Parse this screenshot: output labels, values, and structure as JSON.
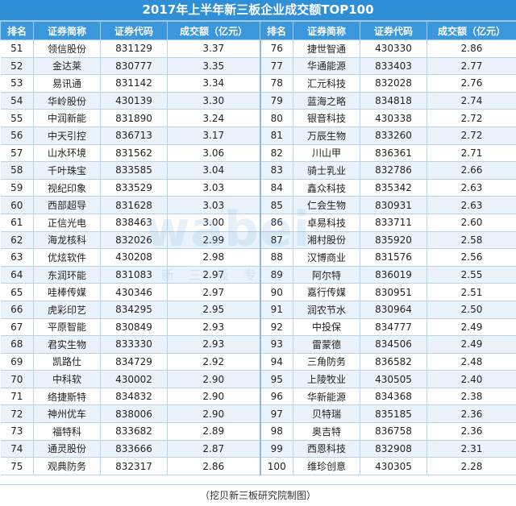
{
  "title": "2017年上半年新三板企业成交额TOP100",
  "headers": [
    "排名",
    "证券简称",
    "证券代码",
    "成交额（亿元）",
    "排名",
    "证券简称",
    "证券代码",
    "成交额（亿元）"
  ],
  "rows": [
    [
      "51",
      "领信股份",
      "831129",
      "3.37",
      "76",
      "捷世智通",
      "430330",
      "2.86"
    ],
    [
      "52",
      "金达莱",
      "830777",
      "3.35",
      "77",
      "华通能源",
      "833403",
      "2.77"
    ],
    [
      "53",
      "易讯通",
      "831142",
      "3.34",
      "78",
      "汇元科技",
      "832028",
      "2.76"
    ],
    [
      "54",
      "华岭股份",
      "430139",
      "3.30",
      "79",
      "蓝海之略",
      "834818",
      "2.74"
    ],
    [
      "55",
      "中润新能",
      "831890",
      "3.24",
      "80",
      "银音科技",
      "430338",
      "2.72"
    ],
    [
      "56",
      "中天引控",
      "836713",
      "3.17",
      "81",
      "万辰生物",
      "833260",
      "2.72"
    ],
    [
      "57",
      "山水环境",
      "831562",
      "3.06",
      "82",
      "川山甲",
      "836361",
      "2.71"
    ],
    [
      "58",
      "千叶珠宝",
      "833585",
      "3.04",
      "83",
      "骑士乳业",
      "832786",
      "2.66"
    ],
    [
      "59",
      "视纪印象",
      "833529",
      "3.03",
      "84",
      "鑫众科技",
      "835342",
      "2.63"
    ],
    [
      "60",
      "西部超导",
      "831628",
      "3.03",
      "85",
      "仁会生物",
      "830931",
      "2.63"
    ],
    [
      "61",
      "正信光电",
      "838463",
      "3.00",
      "86",
      "卓易科技",
      "833711",
      "2.60"
    ],
    [
      "62",
      "海龙核科",
      "832026",
      "2.99",
      "87",
      "湘村股份",
      "835920",
      "2.58"
    ],
    [
      "63",
      "优炫软件",
      "430208",
      "2.98",
      "88",
      "汉博商业",
      "831576",
      "2.56"
    ],
    [
      "64",
      "东润环能",
      "831083",
      "2.97",
      "89",
      "阿尔特",
      "836019",
      "2.55"
    ],
    [
      "65",
      "哇棒传媒",
      "430346",
      "2.97",
      "90",
      "嘉行传媒",
      "830951",
      "2.51"
    ],
    [
      "66",
      "虎彩印艺",
      "834295",
      "2.95",
      "91",
      "润农节水",
      "830964",
      "2.50"
    ],
    [
      "67",
      "平原智能",
      "830849",
      "2.93",
      "92",
      "中投保",
      "834777",
      "2.49"
    ],
    [
      "68",
      "君实生物",
      "833330",
      "2.93",
      "93",
      "雷蒙德",
      "834506",
      "2.49"
    ],
    [
      "69",
      "凯路仕",
      "834729",
      "2.92",
      "94",
      "三角防务",
      "836582",
      "2.48"
    ],
    [
      "70",
      "中科软",
      "430002",
      "2.90",
      "95",
      "上陵牧业",
      "430505",
      "2.40"
    ],
    [
      "71",
      "络捷斯特",
      "834832",
      "2.90",
      "96",
      "华新能源",
      "834368",
      "2.38"
    ],
    [
      "72",
      "神州优车",
      "838006",
      "2.90",
      "97",
      "贝特瑞",
      "835185",
      "2.36"
    ],
    [
      "73",
      "福特科",
      "833682",
      "2.89",
      "98",
      "奥吉特",
      "836758",
      "2.36"
    ],
    [
      "74",
      "通灵股份",
      "833666",
      "2.87",
      "99",
      "西恩科技",
      "832908",
      "2.31"
    ],
    [
      "75",
      "观典防务",
      "832317",
      "2.86",
      "100",
      "维珍创意",
      "430305",
      "2.28"
    ]
  ],
  "footer": "（挖贝新三板研究院制图）",
  "watermark": {
    "main": "wabei",
    "sub": "新三板专业"
  },
  "colors": {
    "header_blue": "#3a97dc",
    "stripe": "#eaf3fb"
  }
}
